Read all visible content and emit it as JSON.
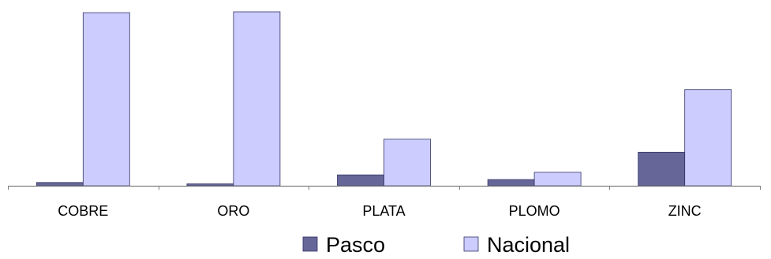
{
  "chart_data": {
    "type": "bar",
    "categories": [
      "COBRE",
      "ORO",
      "PLATA",
      "PLOMO",
      "ZINC"
    ],
    "series": [
      {
        "name": "Pasco",
        "values": [
          1.9,
          1.1,
          6.3,
          3.6,
          19.4
        ],
        "color": "#666699"
      },
      {
        "name": "Nacional",
        "values": [
          100,
          100.5,
          26.9,
          7.8,
          55.6
        ],
        "color": "#ccccff"
      }
    ],
    "ylim": [
      0,
      100.5
    ],
    "grid": false,
    "legend_position": "bottom",
    "colors": {
      "axis": "#808080",
      "bar_stroke": "#333366"
    }
  }
}
